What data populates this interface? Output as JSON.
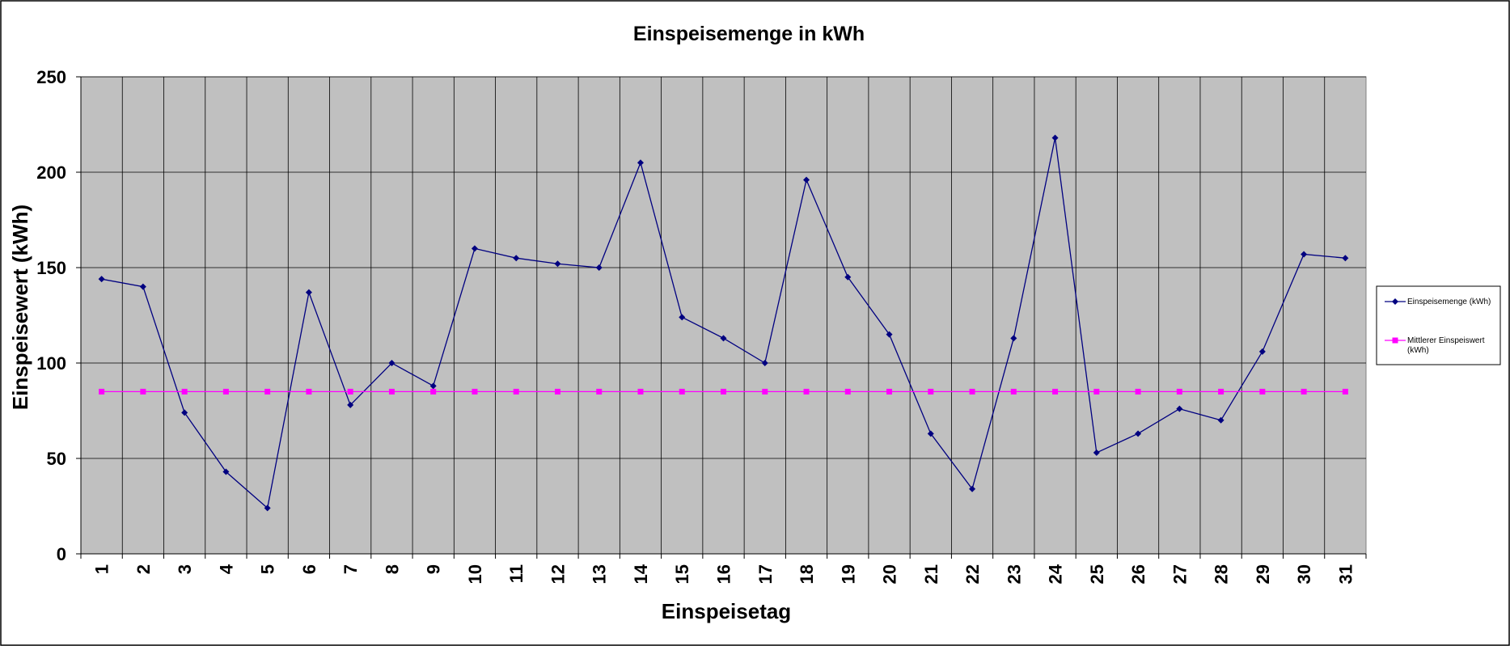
{
  "chart_data": {
    "type": "line",
    "title": "Einspeisemenge in kWh",
    "xlabel": "Einspeisetag",
    "ylabel": "Einspeisewert  (kWh)",
    "ylim": [
      0,
      250
    ],
    "y_ticks": [
      0,
      50,
      100,
      150,
      200,
      250
    ],
    "categories": [
      "1",
      "2",
      "3",
      "4",
      "5",
      "6",
      "7",
      "8",
      "9",
      "10",
      "11",
      "12",
      "13",
      "14",
      "15",
      "16",
      "17",
      "18",
      "19",
      "20",
      "21",
      "22",
      "23",
      "24",
      "25",
      "26",
      "27",
      "28",
      "29",
      "30",
      "31"
    ],
    "grid": true,
    "legend_position": "right",
    "series": [
      {
        "name": "Einspeisemenge (kWh)",
        "color": "#000080",
        "marker": "diamond",
        "values": [
          144,
          140,
          74,
          43,
          24,
          137,
          78,
          100,
          88,
          160,
          155,
          152,
          150,
          205,
          124,
          113,
          100,
          196,
          145,
          115,
          63,
          34,
          113,
          218,
          53,
          63,
          76,
          70,
          106,
          157,
          155
        ]
      },
      {
        "name": "Mittlerer Einspeiswert (kWh)",
        "color": "#ff00ff",
        "marker": "square",
        "values": [
          85,
          85,
          85,
          85,
          85,
          85,
          85,
          85,
          85,
          85,
          85,
          85,
          85,
          85,
          85,
          85,
          85,
          85,
          85,
          85,
          85,
          85,
          85,
          85,
          85,
          85,
          85,
          85,
          85,
          85,
          85
        ]
      }
    ]
  }
}
